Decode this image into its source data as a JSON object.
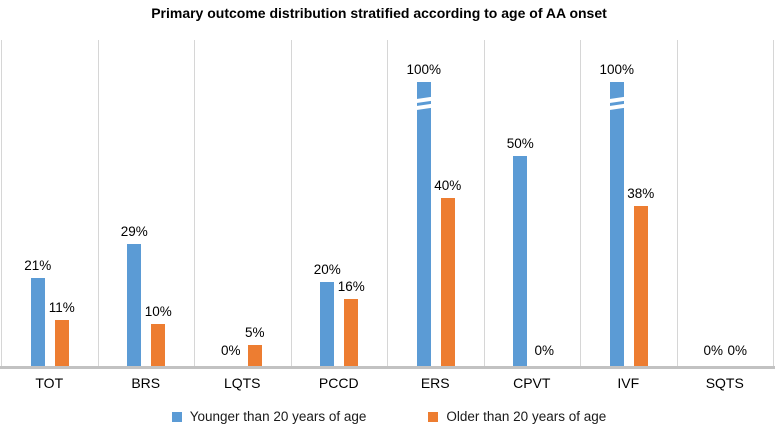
{
  "chart_data": {
    "type": "bar",
    "title": "Primary outcome distribution stratified according to age of AA onset",
    "categories": [
      "TOT",
      "BRS",
      "LQTS",
      "PCCD",
      "ERS",
      "CPVT",
      "IVF",
      "SQTS"
    ],
    "series": [
      {
        "name": "Younger than 20 years of age",
        "color": "#5B9BD5",
        "values": [
          21,
          29,
          0,
          20,
          100,
          50,
          100,
          0
        ],
        "labels": [
          "21%",
          "29%",
          "0%",
          "20%",
          "100%",
          "50%",
          "100%",
          "0%"
        ]
      },
      {
        "name": "Older than 20 years of age",
        "color": "#ED7D31",
        "values": [
          11,
          10,
          5,
          16,
          40,
          0,
          38,
          0
        ],
        "labels": [
          "11%",
          "10%",
          "5%",
          "16%",
          "40%",
          "0%",
          "38%",
          "0%"
        ]
      }
    ],
    "xlabel": "",
    "ylabel": "",
    "ylim": [
      0,
      100
    ],
    "y_axis_ticks_visible": false,
    "grid": "vertical-category-separators",
    "legend_position": "bottom",
    "axis_break_note": "bars at 100% are truncated and drawn with white double break marks near their tops"
  }
}
